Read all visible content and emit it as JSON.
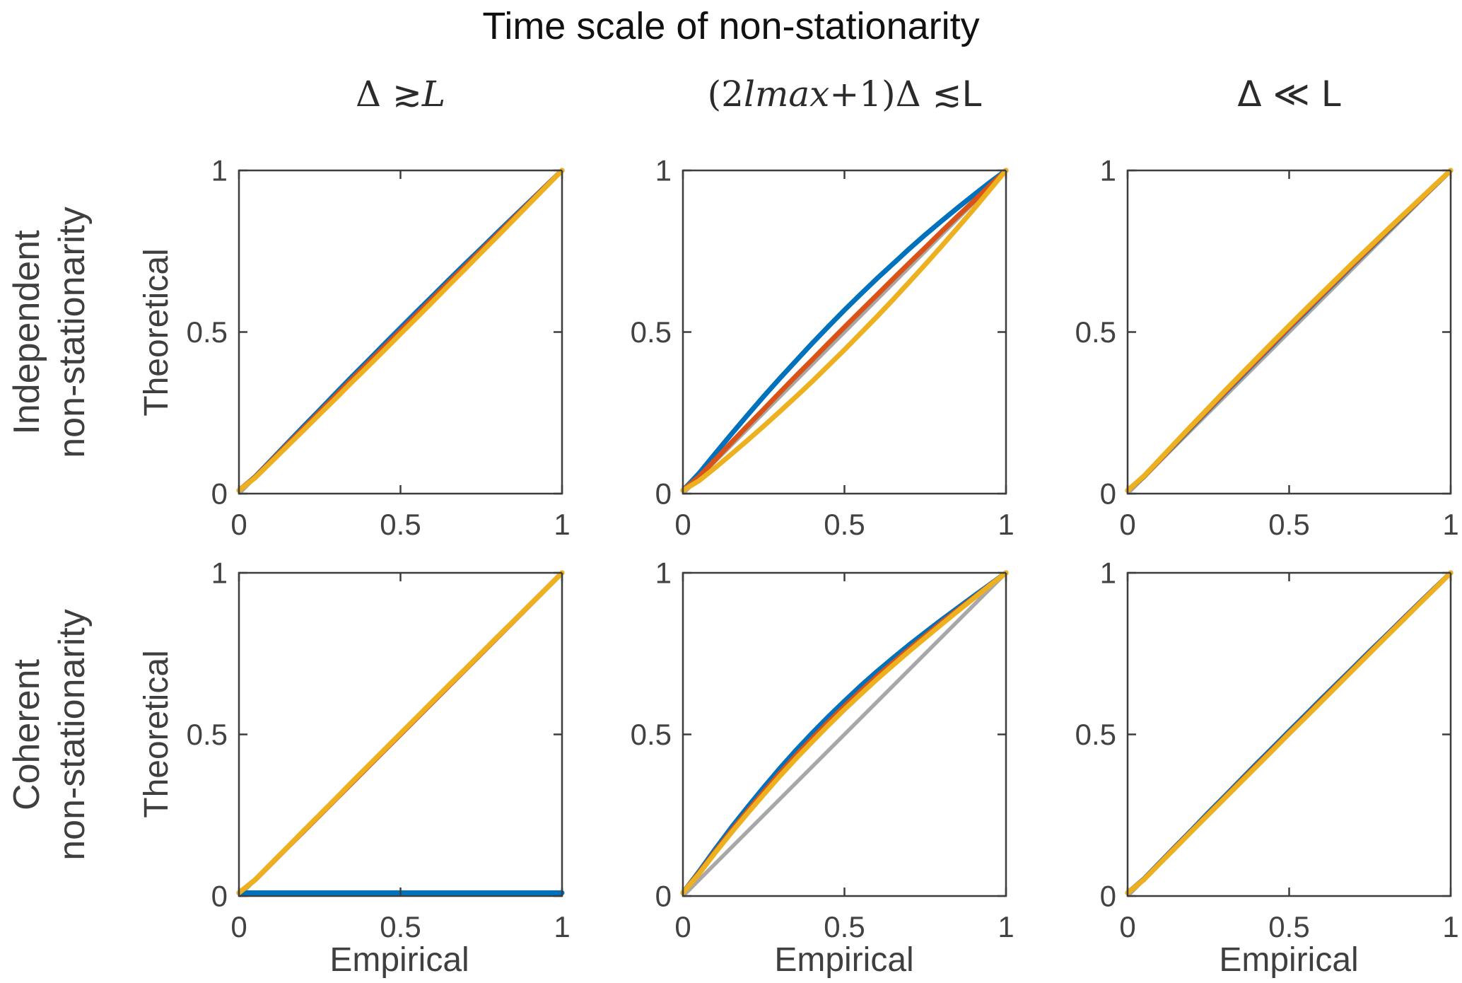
{
  "title": "Time scale of non-stationarity",
  "row_labels": [
    {
      "line1": "Independent",
      "line2": "non-stationarity"
    },
    {
      "line1": "Coherent",
      "line2": "non-stationarity"
    }
  ],
  "col_headers": [
    {
      "name": "timescale-1",
      "plain": "Δ ≳ L",
      "parts": [
        {
          "text": "Δ ≳ ",
          "style": "serif"
        },
        {
          "text": "L",
          "style": "italic"
        }
      ]
    },
    {
      "name": "timescale-2",
      "plain": "(2lmax+1)Δ ≲ L",
      "parts": [
        {
          "text": "(2",
          "style": "serif"
        },
        {
          "text": "lmax",
          "style": "italic"
        },
        {
          "text": "+1)Δ ≲ ",
          "style": "serif"
        },
        {
          "text": "L",
          "style": "sans"
        }
      ]
    },
    {
      "name": "timescale-3",
      "plain": "Δ ≪ L",
      "parts": [
        {
          "text": "Δ ≪ L",
          "style": "sans"
        }
      ]
    }
  ],
  "axis": {
    "xlabel": "Empirical",
    "ylabel": "Theoretical",
    "xticklabels": [
      "0",
      "0.5",
      "1"
    ],
    "yticklabels": [
      "0",
      "0.5",
      "1"
    ]
  },
  "colors": {
    "series_blue": "#0072BD",
    "series_orange": "#D95319",
    "series_yellow": "#EDB120",
    "identity_gray": "#A8A8A8",
    "axis_line": "#3D3D3D",
    "text": "#404040"
  },
  "chart_data": [
    {
      "type": "line",
      "row": "Independent non-stationarity",
      "col": "Δ ≳ L",
      "xlabel": "Empirical",
      "ylabel": "Theoretical",
      "xlim": [
        0,
        1
      ],
      "ylim": [
        0,
        1
      ],
      "xticks": [
        0,
        0.5,
        1
      ],
      "yticks": [
        0,
        0.5,
        1
      ],
      "reference_line": "identity",
      "x": [
        0,
        0.05,
        0.1,
        0.15,
        0.2,
        0.25,
        0.3,
        0.35,
        0.4,
        0.45,
        0.5,
        0.55,
        0.6,
        0.65,
        0.7,
        0.75,
        0.8,
        0.85,
        0.9,
        0.95,
        1
      ],
      "series": [
        {
          "name": "blue",
          "color": "#0072BD",
          "y": [
            0,
            0.052,
            0.104,
            0.156,
            0.208,
            0.259,
            0.311,
            0.362,
            0.412,
            0.463,
            0.513,
            0.563,
            0.612,
            0.662,
            0.711,
            0.759,
            0.808,
            0.856,
            0.904,
            0.952,
            1
          ]
        },
        {
          "name": "orange",
          "color": "#D95319",
          "y": [
            0,
            0.051,
            0.101,
            0.152,
            0.202,
            0.253,
            0.303,
            0.354,
            0.404,
            0.454,
            0.504,
            0.554,
            0.604,
            0.654,
            0.703,
            0.753,
            0.802,
            0.852,
            0.901,
            0.951,
            1
          ]
        },
        {
          "name": "yellow",
          "color": "#EDB120",
          "y": [
            0,
            0.049,
            0.098,
            0.147,
            0.196,
            0.246,
            0.295,
            0.345,
            0.394,
            0.444,
            0.494,
            0.544,
            0.594,
            0.645,
            0.695,
            0.746,
            0.796,
            0.847,
            0.898,
            0.949,
            1
          ]
        }
      ]
    },
    {
      "type": "line",
      "row": "Independent non-stationarity",
      "col": "(2lmax+1)Δ ≲ L",
      "xlabel": "Empirical",
      "ylabel": "Theoretical",
      "xlim": [
        0,
        1
      ],
      "ylim": [
        0,
        1
      ],
      "xticks": [
        0,
        0.5,
        1
      ],
      "yticks": [
        0,
        0.5,
        1
      ],
      "reference_line": "identity",
      "x": [
        0,
        0.05,
        0.1,
        0.15,
        0.2,
        0.25,
        0.3,
        0.35,
        0.4,
        0.45,
        0.5,
        0.55,
        0.6,
        0.65,
        0.7,
        0.75,
        0.8,
        0.85,
        0.9,
        0.95,
        1
      ],
      "series": [
        {
          "name": "blue",
          "color": "#0072BD",
          "y": [
            0,
            0.063,
            0.124,
            0.184,
            0.243,
            0.301,
            0.357,
            0.411,
            0.465,
            0.517,
            0.568,
            0.617,
            0.665,
            0.711,
            0.757,
            0.801,
            0.843,
            0.884,
            0.924,
            0.963,
            1
          ]
        },
        {
          "name": "orange",
          "color": "#D95319",
          "y": [
            0,
            0.053,
            0.105,
            0.158,
            0.21,
            0.261,
            0.313,
            0.364,
            0.414,
            0.465,
            0.515,
            0.565,
            0.614,
            0.664,
            0.713,
            0.761,
            0.81,
            0.858,
            0.905,
            0.953,
            1
          ]
        },
        {
          "name": "yellow",
          "color": "#EDB120",
          "y": [
            0,
            0.04,
            0.08,
            0.122,
            0.165,
            0.209,
            0.254,
            0.3,
            0.347,
            0.396,
            0.445,
            0.496,
            0.547,
            0.6,
            0.654,
            0.709,
            0.765,
            0.822,
            0.88,
            0.94,
            1
          ]
        }
      ]
    },
    {
      "type": "line",
      "row": "Independent non-stationarity",
      "col": "Δ ≪ L",
      "xlabel": "Empirical",
      "ylabel": "Theoretical",
      "xlim": [
        0,
        1
      ],
      "ylim": [
        0,
        1
      ],
      "xticks": [
        0,
        0.5,
        1
      ],
      "yticks": [
        0,
        0.5,
        1
      ],
      "reference_line": "identity",
      "x": [
        0,
        0.05,
        0.1,
        0.15,
        0.2,
        0.25,
        0.3,
        0.35,
        0.4,
        0.45,
        0.5,
        0.55,
        0.6,
        0.65,
        0.7,
        0.75,
        0.8,
        0.85,
        0.9,
        0.95,
        1
      ],
      "series": [
        {
          "name": "blue",
          "color": "#0072BD",
          "y": [
            0,
            0.052,
            0.105,
            0.156,
            0.208,
            0.259,
            0.311,
            0.361,
            0.412,
            0.462,
            0.513,
            0.562,
            0.612,
            0.661,
            0.711,
            0.759,
            0.808,
            0.856,
            0.905,
            0.952,
            1
          ]
        },
        {
          "name": "orange",
          "color": "#D95319",
          "y": [
            0,
            0.053,
            0.105,
            0.158,
            0.21,
            0.261,
            0.313,
            0.364,
            0.414,
            0.465,
            0.515,
            0.565,
            0.614,
            0.664,
            0.713,
            0.761,
            0.81,
            0.858,
            0.905,
            0.953,
            1
          ]
        },
        {
          "name": "yellow",
          "color": "#EDB120",
          "y": [
            0,
            0.054,
            0.107,
            0.16,
            0.213,
            0.265,
            0.317,
            0.368,
            0.419,
            0.47,
            0.52,
            0.57,
            0.619,
            0.668,
            0.717,
            0.765,
            0.813,
            0.86,
            0.907,
            0.954,
            1
          ]
        }
      ]
    },
    {
      "type": "line",
      "row": "Coherent non-stationarity",
      "col": "Δ ≳ L",
      "xlabel": "Empirical",
      "ylabel": "Theoretical",
      "xlim": [
        0,
        1
      ],
      "ylim": [
        0,
        1
      ],
      "xticks": [
        0,
        0.5,
        1
      ],
      "yticks": [
        0,
        0.5,
        1
      ],
      "reference_line": "identity",
      "x": [
        0,
        0.05,
        0.1,
        0.15,
        0.2,
        0.25,
        0.3,
        0.35,
        0.4,
        0.45,
        0.5,
        0.55,
        0.6,
        0.65,
        0.7,
        0.75,
        0.8,
        0.85,
        0.9,
        0.95,
        1
      ],
      "series": [
        {
          "name": "blue",
          "color": "#0072BD",
          "y": [
            0,
            0,
            0,
            0,
            0,
            0,
            0,
            0,
            0,
            0,
            0,
            0,
            0,
            0,
            0,
            0,
            0,
            0,
            0,
            0,
            0
          ]
        },
        {
          "name": "orange",
          "color": "#D95319",
          "y": [
            0,
            0.05,
            0.1,
            0.15,
            0.2,
            0.25,
            0.3,
            0.35,
            0.4,
            0.45,
            0.5,
            0.55,
            0.6,
            0.65,
            0.7,
            0.75,
            0.8,
            0.85,
            0.9,
            0.95,
            1
          ]
        },
        {
          "name": "yellow",
          "color": "#EDB120",
          "y": [
            0,
            0.05,
            0.101,
            0.151,
            0.202,
            0.252,
            0.302,
            0.353,
            0.403,
            0.453,
            0.503,
            0.553,
            0.603,
            0.653,
            0.702,
            0.752,
            0.802,
            0.851,
            0.901,
            0.95,
            1
          ]
        }
      ]
    },
    {
      "type": "line",
      "row": "Coherent non-stationarity",
      "col": "(2lmax+1)Δ ≲ L",
      "xlabel": "Empirical",
      "ylabel": "Theoretical",
      "xlim": [
        0,
        1
      ],
      "ylim": [
        0,
        1
      ],
      "xticks": [
        0,
        0.5,
        1
      ],
      "yticks": [
        0,
        0.5,
        1
      ],
      "reference_line": "identity",
      "x": [
        0,
        0.05,
        0.1,
        0.15,
        0.2,
        0.25,
        0.3,
        0.35,
        0.4,
        0.45,
        0.5,
        0.55,
        0.6,
        0.65,
        0.7,
        0.75,
        0.8,
        0.85,
        0.9,
        0.95,
        1
      ],
      "series": [
        {
          "name": "blue",
          "color": "#0072BD",
          "y": [
            0,
            0.076,
            0.145,
            0.212,
            0.275,
            0.336,
            0.395,
            0.451,
            0.504,
            0.555,
            0.603,
            0.65,
            0.694,
            0.736,
            0.777,
            0.816,
            0.854,
            0.891,
            0.928,
            0.964,
            1
          ]
        },
        {
          "name": "orange",
          "color": "#D95319",
          "y": [
            0,
            0.072,
            0.138,
            0.202,
            0.263,
            0.322,
            0.38,
            0.435,
            0.487,
            0.538,
            0.587,
            0.634,
            0.679,
            0.722,
            0.764,
            0.805,
            0.846,
            0.885,
            0.923,
            0.962,
            1
          ]
        },
        {
          "name": "yellow",
          "color": "#EDB120",
          "y": [
            0,
            0.069,
            0.134,
            0.196,
            0.256,
            0.314,
            0.371,
            0.425,
            0.477,
            0.528,
            0.577,
            0.624,
            0.67,
            0.714,
            0.757,
            0.799,
            0.84,
            0.881,
            0.921,
            0.961,
            1
          ]
        }
      ]
    },
    {
      "type": "line",
      "row": "Coherent non-stationarity",
      "col": "Δ ≪ L",
      "xlabel": "Empirical",
      "ylabel": "Theoretical",
      "xlim": [
        0,
        1
      ],
      "ylim": [
        0,
        1
      ],
      "xticks": [
        0,
        0.5,
        1
      ],
      "yticks": [
        0,
        0.5,
        1
      ],
      "reference_line": "identity",
      "x": [
        0,
        0.05,
        0.1,
        0.15,
        0.2,
        0.25,
        0.3,
        0.35,
        0.4,
        0.45,
        0.5,
        0.55,
        0.6,
        0.65,
        0.7,
        0.75,
        0.8,
        0.85,
        0.9,
        0.95,
        1
      ],
      "series": [
        {
          "name": "blue",
          "color": "#0072BD",
          "y": [
            0,
            0.052,
            0.104,
            0.155,
            0.206,
            0.258,
            0.308,
            0.359,
            0.41,
            0.46,
            0.51,
            0.56,
            0.61,
            0.659,
            0.708,
            0.758,
            0.806,
            0.855,
            0.904,
            0.952,
            1
          ]
        },
        {
          "name": "orange",
          "color": "#D95319",
          "y": [
            0,
            0.051,
            0.102,
            0.153,
            0.203,
            0.254,
            0.304,
            0.355,
            0.405,
            0.455,
            0.505,
            0.555,
            0.605,
            0.655,
            0.704,
            0.754,
            0.803,
            0.853,
            0.902,
            0.951,
            1
          ]
        },
        {
          "name": "yellow",
          "color": "#EDB120",
          "y": [
            0,
            0.05,
            0.101,
            0.151,
            0.202,
            0.252,
            0.302,
            0.352,
            0.402,
            0.452,
            0.503,
            0.552,
            0.602,
            0.652,
            0.702,
            0.752,
            0.802,
            0.851,
            0.901,
            0.95,
            1
          ]
        }
      ]
    }
  ]
}
